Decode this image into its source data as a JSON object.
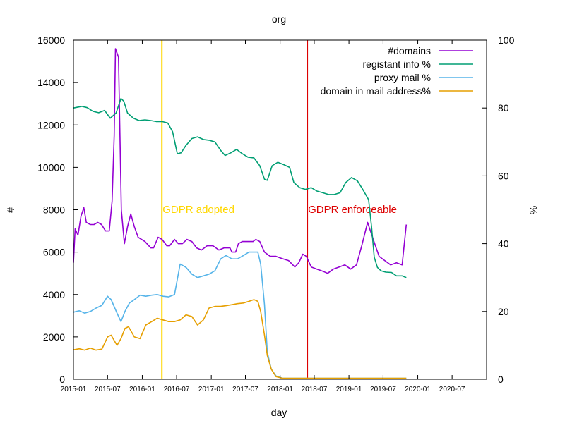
{
  "chart_data": {
    "type": "line",
    "title": "org",
    "xlabel": "day",
    "ylabel": "#",
    "y2label": "%",
    "xlim": [
      "2015-01-01",
      "2020-12-31"
    ],
    "ylim": [
      0,
      16000
    ],
    "y2lim": [
      0,
      100
    ],
    "x_ticks": [
      "2015-01",
      "2015-07",
      "2016-01",
      "2016-07",
      "2017-01",
      "2017-07",
      "2018-01",
      "2018-07",
      "2019-01",
      "2019-07",
      "2020-01",
      "2020-07"
    ],
    "y_ticks": [
      0,
      2000,
      4000,
      6000,
      8000,
      10000,
      12000,
      14000,
      16000
    ],
    "y2_ticks": [
      0,
      20,
      40,
      60,
      80,
      100
    ],
    "grid": false,
    "legend_position": "top-right",
    "series": [
      {
        "name": "#domains",
        "axis": "left",
        "color": "#9400d3",
        "points": [
          [
            "2015-01-01",
            5500
          ],
          [
            "2015-01-10",
            7100
          ],
          [
            "2015-01-25",
            6800
          ],
          [
            "2015-02-10",
            7700
          ],
          [
            "2015-02-25",
            8100
          ],
          [
            "2015-03-10",
            7400
          ],
          [
            "2015-04-01",
            7300
          ],
          [
            "2015-04-20",
            7300
          ],
          [
            "2015-05-10",
            7400
          ],
          [
            "2015-05-30",
            7300
          ],
          [
            "2015-06-20",
            7000
          ],
          [
            "2015-07-10",
            7000
          ],
          [
            "2015-07-25",
            8400
          ],
          [
            "2015-08-05",
            11500
          ],
          [
            "2015-08-12",
            15600
          ],
          [
            "2015-08-28",
            15200
          ],
          [
            "2015-09-12",
            8000
          ],
          [
            "2015-09-28",
            6400
          ],
          [
            "2015-10-15",
            7200
          ],
          [
            "2015-11-01",
            7800
          ],
          [
            "2015-11-20",
            7200
          ],
          [
            "2015-12-10",
            6700
          ],
          [
            "2016-01-15",
            6500
          ],
          [
            "2016-02-15",
            6200
          ],
          [
            "2016-03-01",
            6200
          ],
          [
            "2016-03-25",
            6700
          ],
          [
            "2016-04-15",
            6600
          ],
          [
            "2016-05-10",
            6300
          ],
          [
            "2016-05-25",
            6300
          ],
          [
            "2016-06-20",
            6600
          ],
          [
            "2016-07-10",
            6400
          ],
          [
            "2016-08-01",
            6400
          ],
          [
            "2016-08-25",
            6600
          ],
          [
            "2016-09-20",
            6500
          ],
          [
            "2016-10-15",
            6200
          ],
          [
            "2016-11-10",
            6100
          ],
          [
            "2016-12-10",
            6300
          ],
          [
            "2017-01-10",
            6300
          ],
          [
            "2017-02-10",
            6100
          ],
          [
            "2017-03-10",
            6200
          ],
          [
            "2017-04-10",
            6200
          ],
          [
            "2017-04-20",
            6000
          ],
          [
            "2017-05-10",
            6000
          ],
          [
            "2017-05-25",
            6400
          ],
          [
            "2017-06-15",
            6500
          ],
          [
            "2017-07-15",
            6500
          ],
          [
            "2017-08-10",
            6500
          ],
          [
            "2017-08-25",
            6600
          ],
          [
            "2017-09-15",
            6500
          ],
          [
            "2017-10-10",
            6000
          ],
          [
            "2017-11-10",
            5800
          ],
          [
            "2017-12-10",
            5800
          ],
          [
            "2018-01-10",
            5700
          ],
          [
            "2018-02-15",
            5600
          ],
          [
            "2018-03-20",
            5300
          ],
          [
            "2018-04-10",
            5500
          ],
          [
            "2018-05-01",
            5900
          ],
          [
            "2018-05-20",
            5800
          ],
          [
            "2018-06-15",
            5300
          ],
          [
            "2018-07-15",
            5200
          ],
          [
            "2018-08-15",
            5100
          ],
          [
            "2018-09-10",
            5000
          ],
          [
            "2018-10-10",
            5200
          ],
          [
            "2018-11-10",
            5300
          ],
          [
            "2018-12-10",
            5400
          ],
          [
            "2019-01-10",
            5200
          ],
          [
            "2019-02-10",
            5400
          ],
          [
            "2019-03-10",
            6300
          ],
          [
            "2019-04-10",
            7400
          ],
          [
            "2019-05-10",
            6600
          ],
          [
            "2019-06-10",
            5800
          ],
          [
            "2019-07-10",
            5600
          ],
          [
            "2019-08-10",
            5400
          ],
          [
            "2019-09-10",
            5500
          ],
          [
            "2019-10-10",
            5400
          ],
          [
            "2019-11-01",
            7300
          ]
        ]
      },
      {
        "name": "registant info %",
        "axis": "right",
        "color": "#009e73",
        "points": [
          [
            "2015-01-01",
            80.0
          ],
          [
            "2015-02-15",
            80.5
          ],
          [
            "2015-03-15",
            80.1
          ],
          [
            "2015-04-15",
            79.0
          ],
          [
            "2015-05-15",
            78.6
          ],
          [
            "2015-06-15",
            79.3
          ],
          [
            "2015-07-15",
            77.0
          ],
          [
            "2015-08-15",
            78.5
          ],
          [
            "2015-09-10",
            82.8
          ],
          [
            "2015-09-25",
            82.0
          ],
          [
            "2015-10-15",
            78.5
          ],
          [
            "2015-11-15",
            77.0
          ],
          [
            "2015-12-15",
            76.3
          ],
          [
            "2016-01-15",
            76.5
          ],
          [
            "2016-02-15",
            76.3
          ],
          [
            "2016-03-15",
            76.0
          ],
          [
            "2016-04-15",
            76.0
          ],
          [
            "2016-05-15",
            75.6
          ],
          [
            "2016-06-10",
            73.0
          ],
          [
            "2016-07-05",
            66.5
          ],
          [
            "2016-07-25",
            66.8
          ],
          [
            "2016-08-20",
            69.0
          ],
          [
            "2016-09-20",
            71.0
          ],
          [
            "2016-10-20",
            71.5
          ],
          [
            "2016-11-20",
            70.7
          ],
          [
            "2016-12-20",
            70.5
          ],
          [
            "2017-01-20",
            70.0
          ],
          [
            "2017-02-20",
            67.5
          ],
          [
            "2017-03-15",
            66.0
          ],
          [
            "2017-04-15",
            66.8
          ],
          [
            "2017-05-15",
            67.8
          ],
          [
            "2017-06-15",
            66.5
          ],
          [
            "2017-07-15",
            65.5
          ],
          [
            "2017-08-15",
            65.3
          ],
          [
            "2017-09-15",
            63.0
          ],
          [
            "2017-10-10",
            59.0
          ],
          [
            "2017-10-25",
            58.7
          ],
          [
            "2017-11-20",
            63.0
          ],
          [
            "2017-12-20",
            64.0
          ],
          [
            "2018-01-20",
            63.3
          ],
          [
            "2018-02-20",
            62.5
          ],
          [
            "2018-03-15",
            58.0
          ],
          [
            "2018-04-15",
            56.5
          ],
          [
            "2018-05-15",
            56.0
          ],
          [
            "2018-06-15",
            56.5
          ],
          [
            "2018-07-15",
            55.5
          ],
          [
            "2018-08-15",
            55.0
          ],
          [
            "2018-09-15",
            54.5
          ],
          [
            "2018-10-15",
            54.5
          ],
          [
            "2018-11-15",
            55.0
          ],
          [
            "2018-12-15",
            58.0
          ],
          [
            "2019-01-15",
            59.5
          ],
          [
            "2019-02-15",
            58.5
          ],
          [
            "2019-03-15",
            56.0
          ],
          [
            "2019-04-15",
            53.0
          ],
          [
            "2019-05-01",
            45.0
          ],
          [
            "2019-05-15",
            36.0
          ],
          [
            "2019-06-01",
            33.0
          ],
          [
            "2019-06-20",
            32.0
          ],
          [
            "2019-07-15",
            31.6
          ],
          [
            "2019-08-15",
            31.5
          ],
          [
            "2019-09-10",
            30.5
          ],
          [
            "2019-10-10",
            30.5
          ],
          [
            "2019-11-01",
            30.0
          ]
        ]
      },
      {
        "name": "proxy mail %",
        "axis": "right",
        "color": "#56b4e9",
        "points": [
          [
            "2015-01-01",
            19.8
          ],
          [
            "2015-02-01",
            20.2
          ],
          [
            "2015-03-01",
            19.5
          ],
          [
            "2015-04-01",
            20.0
          ],
          [
            "2015-05-01",
            21.0
          ],
          [
            "2015-06-01",
            21.8
          ],
          [
            "2015-07-01",
            24.5
          ],
          [
            "2015-07-20",
            23.5
          ],
          [
            "2015-08-20",
            19.5
          ],
          [
            "2015-09-10",
            17.0
          ],
          [
            "2015-10-01",
            20.0
          ],
          [
            "2015-10-25",
            22.5
          ],
          [
            "2015-11-20",
            23.5
          ],
          [
            "2015-12-20",
            24.8
          ],
          [
            "2016-01-20",
            24.5
          ],
          [
            "2016-02-20",
            24.8
          ],
          [
            "2016-03-20",
            25.0
          ],
          [
            "2016-04-20",
            24.5
          ],
          [
            "2016-05-20",
            24.3
          ],
          [
            "2016-06-20",
            25.0
          ],
          [
            "2016-07-20",
            34.0
          ],
          [
            "2016-08-20",
            33.0
          ],
          [
            "2016-09-20",
            31.0
          ],
          [
            "2016-10-20",
            30.0
          ],
          [
            "2016-11-20",
            30.5
          ],
          [
            "2016-12-20",
            31.0
          ],
          [
            "2017-01-20",
            32.0
          ],
          [
            "2017-02-20",
            35.5
          ],
          [
            "2017-03-20",
            36.5
          ],
          [
            "2017-04-20",
            35.5
          ],
          [
            "2017-05-20",
            35.5
          ],
          [
            "2017-06-20",
            36.5
          ],
          [
            "2017-07-20",
            37.5
          ],
          [
            "2017-08-15",
            37.5
          ],
          [
            "2017-09-05",
            37.5
          ],
          [
            "2017-09-20",
            34.0
          ],
          [
            "2017-10-10",
            22.0
          ],
          [
            "2017-10-25",
            8.0
          ],
          [
            "2017-11-15",
            3.0
          ],
          [
            "2017-12-10",
            1.0
          ],
          [
            "2018-01-15",
            0.3
          ],
          [
            "2019-11-01",
            0.3
          ]
        ]
      },
      {
        "name": "domain in mail address%",
        "axis": "right",
        "color": "#e69f00",
        "points": [
          [
            "2015-01-01",
            8.7
          ],
          [
            "2015-02-01",
            9.0
          ],
          [
            "2015-03-01",
            8.6
          ],
          [
            "2015-04-01",
            9.2
          ],
          [
            "2015-05-01",
            8.6
          ],
          [
            "2015-06-01",
            8.9
          ],
          [
            "2015-07-01",
            12.5
          ],
          [
            "2015-07-20",
            13.0
          ],
          [
            "2015-08-20",
            10.0
          ],
          [
            "2015-09-10",
            12.0
          ],
          [
            "2015-10-01",
            15.0
          ],
          [
            "2015-10-20",
            15.5
          ],
          [
            "2015-11-20",
            12.5
          ],
          [
            "2015-12-20",
            12.0
          ],
          [
            "2016-01-20",
            16.0
          ],
          [
            "2016-02-20",
            17.0
          ],
          [
            "2016-03-20",
            18.0
          ],
          [
            "2016-04-20",
            17.5
          ],
          [
            "2016-05-20",
            17.0
          ],
          [
            "2016-06-20",
            17.0
          ],
          [
            "2016-07-20",
            17.5
          ],
          [
            "2016-08-20",
            19.0
          ],
          [
            "2016-09-20",
            18.5
          ],
          [
            "2016-10-20",
            16.0
          ],
          [
            "2016-11-20",
            17.5
          ],
          [
            "2016-12-20",
            21.0
          ],
          [
            "2017-01-20",
            21.5
          ],
          [
            "2017-02-20",
            21.5
          ],
          [
            "2017-03-20",
            21.7
          ],
          [
            "2017-04-20",
            22.0
          ],
          [
            "2017-05-20",
            22.3
          ],
          [
            "2017-06-20",
            22.5
          ],
          [
            "2017-07-20",
            23.0
          ],
          [
            "2017-08-15",
            23.5
          ],
          [
            "2017-09-05",
            23.0
          ],
          [
            "2017-09-20",
            20.0
          ],
          [
            "2017-10-10",
            13.0
          ],
          [
            "2017-10-25",
            7.0
          ],
          [
            "2017-11-15",
            3.0
          ],
          [
            "2017-12-10",
            0.8
          ],
          [
            "2018-01-15",
            0.3
          ],
          [
            "2019-11-01",
            0.3
          ]
        ]
      }
    ],
    "annotations": [
      {
        "label": "GDPR adopted",
        "date": "2016-04-14",
        "color": "#ffd700"
      },
      {
        "label": "GDPR enforceable",
        "date": "2018-05-25",
        "color": "#dd0000"
      }
    ]
  }
}
